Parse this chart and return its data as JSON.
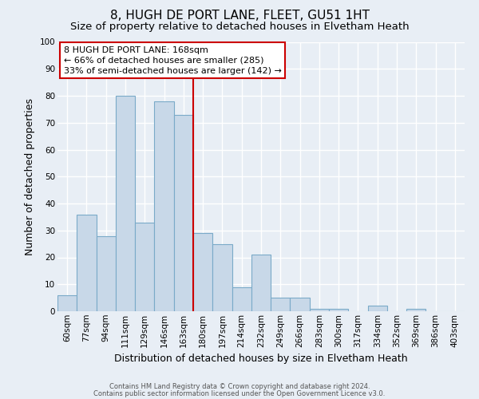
{
  "title": "8, HUGH DE PORT LANE, FLEET, GU51 1HT",
  "subtitle": "Size of property relative to detached houses in Elvetham Heath",
  "xlabel": "Distribution of detached houses by size in Elvetham Heath",
  "ylabel": "Number of detached properties",
  "bin_labels": [
    "60sqm",
    "77sqm",
    "94sqm",
    "111sqm",
    "129sqm",
    "146sqm",
    "163sqm",
    "180sqm",
    "197sqm",
    "214sqm",
    "232sqm",
    "249sqm",
    "266sqm",
    "283sqm",
    "300sqm",
    "317sqm",
    "334sqm",
    "352sqm",
    "369sqm",
    "386sqm",
    "403sqm"
  ],
  "bar_heights": [
    6,
    36,
    28,
    80,
    33,
    78,
    73,
    29,
    25,
    9,
    21,
    5,
    5,
    1,
    1,
    0,
    2,
    0,
    1,
    0,
    0
  ],
  "bar_color": "#c8d8e8",
  "bar_edge_color": "#7aaac8",
  "vline_color": "#cc0000",
  "vline_x_index": 6,
  "ylim": [
    0,
    100
  ],
  "annotation_title": "8 HUGH DE PORT LANE: 168sqm",
  "annotation_line1": "← 66% of detached houses are smaller (285)",
  "annotation_line2": "33% of semi-detached houses are larger (142) →",
  "annotation_box_color": "#ffffff",
  "annotation_box_edge": "#cc0000",
  "background_color": "#e8eef5",
  "grid_color": "#ffffff",
  "footer_line1": "Contains HM Land Registry data © Crown copyright and database right 2024.",
  "footer_line2": "Contains public sector information licensed under the Open Government Licence v3.0.",
  "title_fontsize": 11,
  "subtitle_fontsize": 9.5,
  "axis_label_fontsize": 9,
  "tick_fontsize": 7.5,
  "annotation_fontsize": 8,
  "footer_fontsize": 6
}
